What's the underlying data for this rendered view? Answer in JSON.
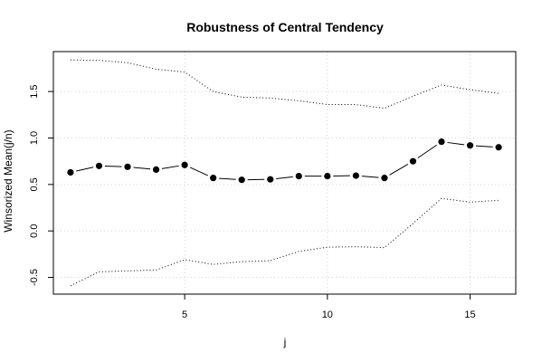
{
  "chart_data": {
    "type": "line",
    "title": "Robustness of Central Tendency",
    "xlabel": "j",
    "ylabel": "Winsorized Mean(j/n)",
    "xlim": [
      0.4,
      16.6
    ],
    "ylim": [
      -0.68,
      1.93
    ],
    "xticks": [
      5,
      10,
      15
    ],
    "yticks": [
      -0.5,
      0.0,
      0.5,
      1.0,
      1.5
    ],
    "ytick_labels": [
      "-0.5",
      "0.0",
      "0.5",
      "1.0",
      "1.5"
    ],
    "grid": true,
    "series": [
      {
        "style": "points-and-lines",
        "x": [
          1,
          2,
          3,
          4,
          5,
          6,
          7,
          8,
          9,
          10,
          11,
          12,
          13,
          14,
          15,
          16
        ],
        "values": [
          0.63,
          0.7,
          0.69,
          0.66,
          0.71,
          0.57,
          0.55,
          0.555,
          0.59,
          0.59,
          0.595,
          0.57,
          0.75,
          0.96,
          0.92,
          0.9
        ]
      },
      {
        "style": "dotted",
        "x": [
          1,
          2,
          3,
          4,
          5,
          6,
          7,
          8,
          9,
          10,
          11,
          12,
          13,
          14,
          15,
          16
        ],
        "values": [
          1.84,
          1.835,
          1.81,
          1.74,
          1.71,
          1.5,
          1.44,
          1.43,
          1.4,
          1.36,
          1.36,
          1.32,
          1.45,
          1.57,
          1.52,
          1.48
        ]
      },
      {
        "style": "dotted",
        "x": [
          1,
          2,
          3,
          4,
          5,
          6,
          7,
          8,
          9,
          10,
          11,
          12,
          13,
          14,
          15,
          16
        ],
        "values": [
          -0.59,
          -0.44,
          -0.43,
          -0.42,
          -0.31,
          -0.36,
          -0.33,
          -0.32,
          -0.22,
          -0.175,
          -0.17,
          -0.18,
          0.08,
          0.35,
          0.31,
          0.33
        ]
      }
    ]
  }
}
